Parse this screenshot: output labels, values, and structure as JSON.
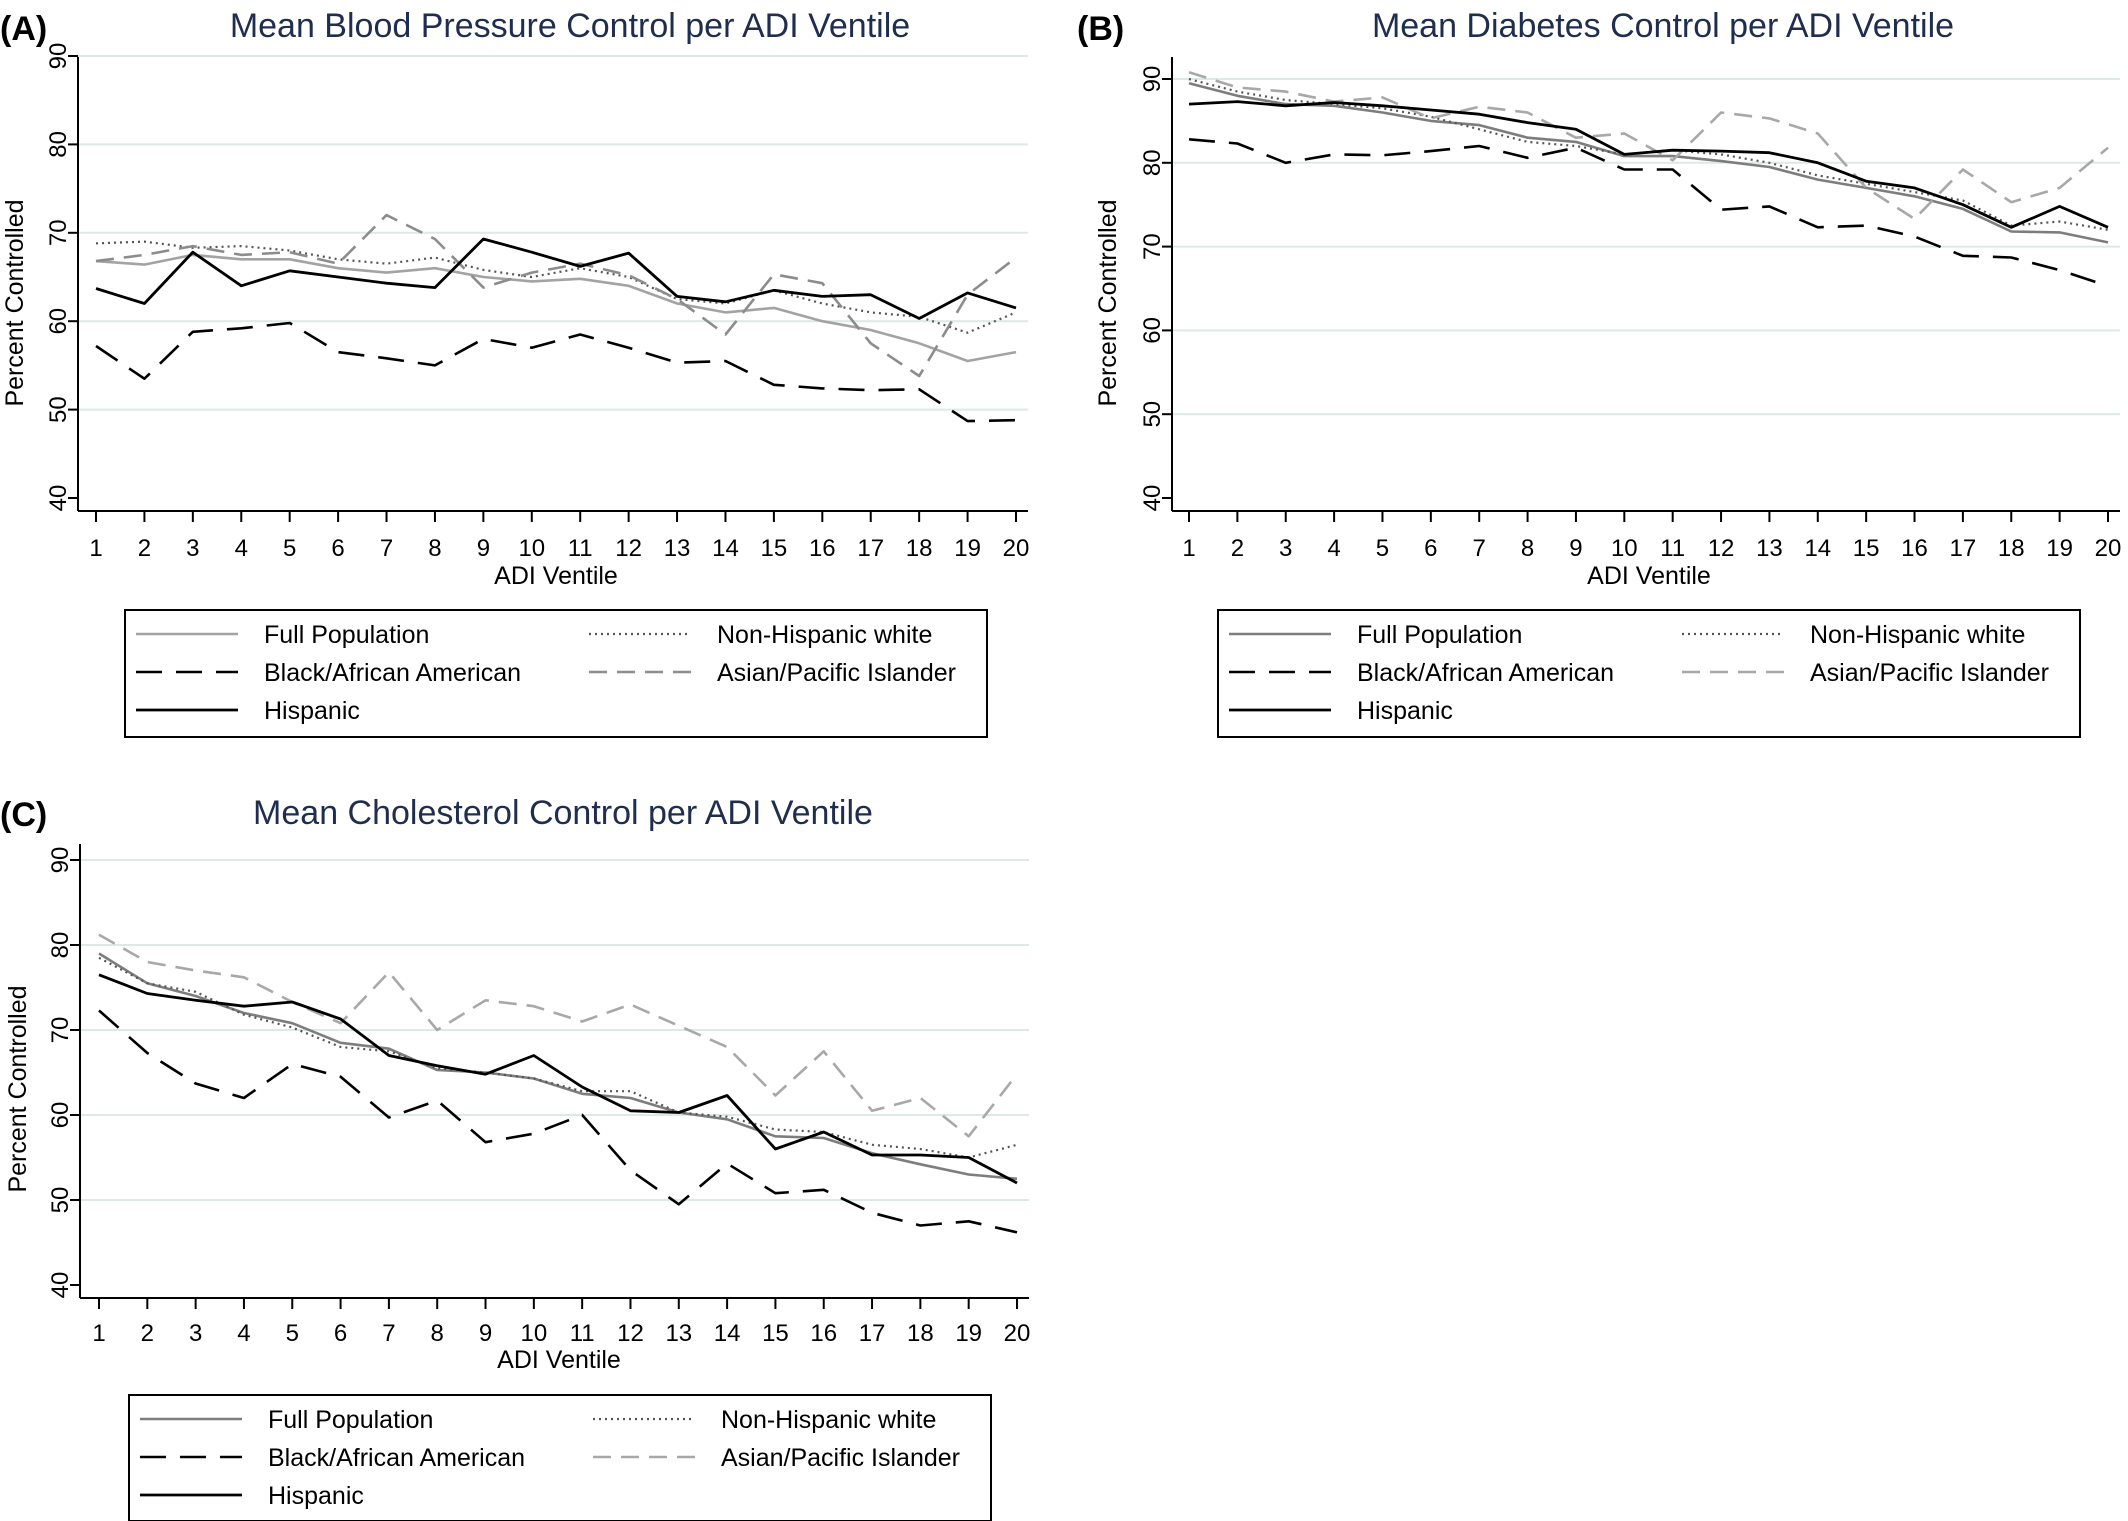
{
  "figure": {
    "panels": [
      {
        "label": "(A)",
        "title": "Mean Blood Pressure Control per ADI Ventile"
      },
      {
        "label": "(B)",
        "title": "Mean Diabetes Control per ADI Ventile"
      },
      {
        "label": "(C)",
        "title": "Mean Cholesterol Control per ADI Ventile"
      }
    ]
  },
  "colors": {
    "title": "#1f2d4e",
    "grid": "#dde9e6",
    "axis": "#000000",
    "full_population_A": "#a3a3a3",
    "full_population_BC": "#7d7d7d",
    "black": "#000000",
    "hispanic": "#000000",
    "non_hispanic_white": "#555555",
    "asian": "#8c8c8c",
    "asian_light": "#a8a8a8"
  },
  "chart_data": [
    {
      "type": "line",
      "title": "Mean Blood Pressure Control per ADI Ventile",
      "xlabel": "ADI Ventile",
      "ylabel": "Percent Controlled",
      "x": [
        1,
        2,
        3,
        4,
        5,
        6,
        7,
        8,
        9,
        10,
        11,
        12,
        13,
        14,
        15,
        16,
        17,
        18,
        19,
        20
      ],
      "xlim": [
        1,
        20
      ],
      "ylim": [
        40,
        90
      ],
      "yticks": [
        40,
        50,
        60,
        70,
        80,
        90
      ],
      "grid": true,
      "legend_position": "bottom",
      "series": [
        {
          "name": "Full Population",
          "values": [
            66.8,
            66.4,
            67.5,
            67.0,
            67.0,
            66.0,
            65.5,
            66.0,
            65.0,
            64.5,
            64.8,
            64.0,
            62.0,
            61.0,
            61.5,
            60.0,
            59.0,
            57.5,
            55.5,
            56.5
          ]
        },
        {
          "name": "Non-Hispanic white",
          "values": [
            68.8,
            69.0,
            68.3,
            68.5,
            68.0,
            67.0,
            66.5,
            67.2,
            65.8,
            65.0,
            66.0,
            65.0,
            62.5,
            62.0,
            63.5,
            62.0,
            61.0,
            60.5,
            58.7,
            61.0
          ]
        },
        {
          "name": "Black/African American",
          "values": [
            57.2,
            53.5,
            58.8,
            59.2,
            59.8,
            56.5,
            55.8,
            55.0,
            58.0,
            57.0,
            58.5,
            57.0,
            55.3,
            55.5,
            52.8,
            52.4,
            52.2,
            52.3,
            48.7,
            48.8
          ]
        },
        {
          "name": "Asian/Pacific Islander",
          "values": [
            66.8,
            67.5,
            68.5,
            67.5,
            67.8,
            66.5,
            72.0,
            69.3,
            63.8,
            65.5,
            66.5,
            65.2,
            62.5,
            58.5,
            65.3,
            64.3,
            57.5,
            53.8,
            63.0,
            67.2
          ]
        },
        {
          "name": "Hispanic",
          "values": [
            63.7,
            62.0,
            67.8,
            64.0,
            65.7,
            65.0,
            64.3,
            63.8,
            69.3,
            67.8,
            66.2,
            67.7,
            62.8,
            62.2,
            63.5,
            62.8,
            63.0,
            60.3,
            63.2,
            61.5
          ]
        }
      ]
    },
    {
      "type": "line",
      "title": "Mean Diabetes Control per ADI Ventile",
      "xlabel": "ADI Ventile",
      "ylabel": "Percent Controlled",
      "x": [
        1,
        2,
        3,
        4,
        5,
        6,
        7,
        8,
        9,
        10,
        11,
        12,
        13,
        14,
        15,
        16,
        17,
        18,
        19,
        20
      ],
      "xlim": [
        1,
        20
      ],
      "ylim": [
        40,
        90
      ],
      "yticks": [
        40,
        50,
        60,
        70,
        80,
        90
      ],
      "grid": true,
      "legend_position": "bottom",
      "series": [
        {
          "name": "Full Population",
          "values": [
            89.5,
            88.0,
            87.0,
            86.8,
            86.0,
            85.0,
            84.5,
            83.0,
            82.5,
            80.8,
            80.8,
            80.2,
            79.5,
            78.0,
            77.0,
            76.0,
            74.5,
            71.8,
            71.7,
            70.5
          ]
        },
        {
          "name": "Non-Hispanic white",
          "values": [
            90.0,
            88.5,
            87.5,
            87.0,
            86.5,
            85.5,
            84.0,
            82.5,
            82.0,
            81.0,
            81.5,
            81.0,
            80.0,
            78.5,
            77.5,
            76.5,
            75.5,
            72.5,
            73.0,
            72.0
          ]
        },
        {
          "name": "Black/African American",
          "values": [
            82.8,
            82.3,
            80.0,
            81.0,
            80.9,
            81.4,
            82.0,
            80.6,
            81.8,
            79.2,
            79.2,
            74.4,
            74.8,
            72.3,
            72.5,
            71.2,
            68.9,
            68.7,
            67.2,
            65.3
          ]
        },
        {
          "name": "Asian/Pacific Islander",
          "values": [
            90.8,
            89.0,
            88.5,
            87.3,
            87.8,
            85.3,
            86.7,
            86.0,
            83.0,
            83.5,
            80.3,
            86.0,
            85.3,
            83.5,
            77.0,
            73.3,
            79.2,
            75.3,
            77.0,
            81.8
          ]
        },
        {
          "name": "Hispanic",
          "values": [
            87.0,
            87.3,
            86.8,
            87.2,
            86.8,
            86.3,
            85.8,
            84.8,
            84.0,
            81.0,
            81.5,
            81.4,
            81.2,
            80.0,
            77.8,
            77.0,
            75.0,
            72.3,
            74.8,
            72.3
          ]
        }
      ]
    },
    {
      "type": "line",
      "title": "Mean Cholesterol Control per ADI Ventile",
      "xlabel": "ADI Ventile",
      "ylabel": "Percent Controlled",
      "x": [
        1,
        2,
        3,
        4,
        5,
        6,
        7,
        8,
        9,
        10,
        11,
        12,
        13,
        14,
        15,
        16,
        17,
        18,
        19,
        20
      ],
      "xlim": [
        1,
        20
      ],
      "ylim": [
        40,
        90
      ],
      "yticks": [
        40,
        50,
        60,
        70,
        80,
        90
      ],
      "grid": true,
      "legend_position": "bottom",
      "series": [
        {
          "name": "Full Population",
          "values": [
            79.0,
            75.5,
            74.0,
            72.0,
            70.8,
            68.5,
            67.8,
            65.3,
            65.0,
            64.3,
            62.5,
            62.0,
            60.3,
            59.5,
            57.5,
            57.3,
            55.5,
            54.2,
            53.0,
            52.5
          ]
        },
        {
          "name": "Non-Hispanic white",
          "values": [
            78.5,
            75.5,
            74.5,
            71.8,
            70.3,
            68.0,
            67.5,
            65.5,
            65.0,
            64.3,
            62.8,
            62.8,
            60.3,
            59.8,
            58.3,
            58.0,
            56.5,
            56.0,
            55.0,
            56.5
          ]
        },
        {
          "name": "Black/African American",
          "values": [
            72.3,
            67.3,
            63.7,
            62.0,
            66.0,
            64.5,
            59.7,
            61.7,
            56.8,
            57.8,
            60.0,
            53.5,
            49.5,
            54.3,
            50.8,
            51.2,
            48.5,
            47.0,
            47.5,
            46.2
          ]
        },
        {
          "name": "Asian/Pacific Islander",
          "values": [
            81.2,
            78.0,
            77.0,
            76.2,
            73.3,
            70.8,
            76.8,
            70.0,
            73.5,
            72.8,
            71.0,
            73.0,
            70.5,
            68.0,
            62.3,
            67.5,
            60.5,
            62.0,
            57.5,
            64.8
          ]
        },
        {
          "name": "Hispanic",
          "values": [
            76.5,
            74.3,
            73.5,
            72.8,
            73.3,
            71.3,
            67.0,
            65.8,
            64.8,
            67.0,
            63.3,
            60.5,
            60.3,
            62.3,
            56.0,
            58.0,
            55.3,
            55.3,
            55.0,
            52.0
          ]
        }
      ]
    }
  ]
}
